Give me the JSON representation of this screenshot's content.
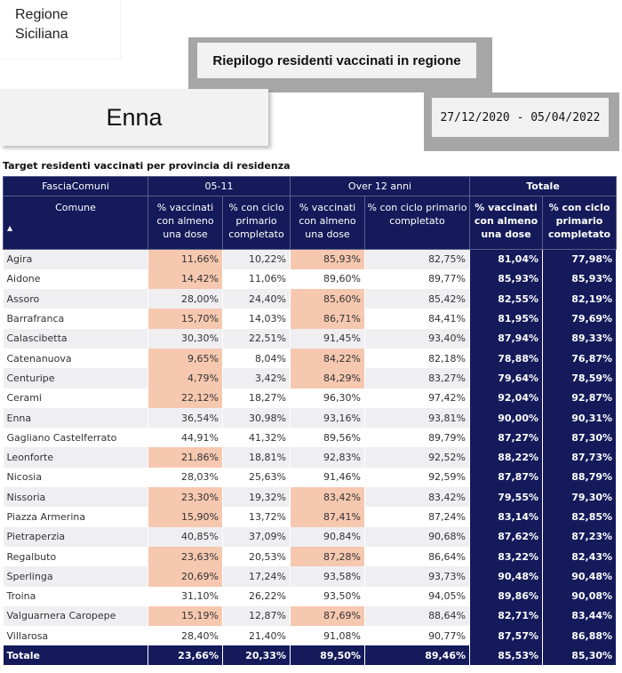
{
  "region": {
    "line1": "Regione",
    "line2": "Siciliana"
  },
  "report_title": "Riepilogo residenti vaccinati in regione",
  "province": "Enna",
  "date_range": "27/12/2020 - 05/04/2022",
  "table_title": "Target residenti vaccinati per provincia di residenza",
  "header": {
    "fascia": "FasciaComuni",
    "group_0511": "05-11",
    "group_over12": "Over 12 anni",
    "group_totale": "Totale",
    "comune": "Comune",
    "col_dose": "% vaccinati con almeno una dose",
    "col_ciclo": "% con ciclo primario completato",
    "sort_glyph": "▲"
  },
  "colors": {
    "header_bg": "#141a5a",
    "highlight": "#f6c8b0"
  },
  "rows": [
    {
      "comune": "Agira",
      "d0511": "11,66%",
      "c0511": "10,22%",
      "d12": "85,93%",
      "c12": "82,75%",
      "dtot": "81,04%",
      "ctot": "77,98%",
      "h1": true,
      "h2": true
    },
    {
      "comune": "Aidone",
      "d0511": "14,42%",
      "c0511": "11,06%",
      "d12": "89,60%",
      "c12": "89,77%",
      "dtot": "85,93%",
      "ctot": "85,93%",
      "h1": true,
      "h2": false
    },
    {
      "comune": "Assoro",
      "d0511": "28,00%",
      "c0511": "24,40%",
      "d12": "85,60%",
      "c12": "85,42%",
      "dtot": "82,55%",
      "ctot": "82,19%",
      "h1": false,
      "h2": true
    },
    {
      "comune": "Barrafranca",
      "d0511": "15,70%",
      "c0511": "14,03%",
      "d12": "86,71%",
      "c12": "84,41%",
      "dtot": "81,95%",
      "ctot": "79,69%",
      "h1": true,
      "h2": true
    },
    {
      "comune": "Calascibetta",
      "d0511": "30,30%",
      "c0511": "22,51%",
      "d12": "91,45%",
      "c12": "93,40%",
      "dtot": "87,94%",
      "ctot": "89,33%",
      "h1": false,
      "h2": false
    },
    {
      "comune": "Catenanuova",
      "d0511": "9,65%",
      "c0511": "8,04%",
      "d12": "84,22%",
      "c12": "82,18%",
      "dtot": "78,88%",
      "ctot": "76,87%",
      "h1": true,
      "h2": true
    },
    {
      "comune": "Centuripe",
      "d0511": "4,79%",
      "c0511": "3,42%",
      "d12": "84,29%",
      "c12": "83,27%",
      "dtot": "79,64%",
      "ctot": "78,59%",
      "h1": true,
      "h2": true
    },
    {
      "comune": "Cerami",
      "d0511": "22,12%",
      "c0511": "18,27%",
      "d12": "96,30%",
      "c12": "97,42%",
      "dtot": "92,04%",
      "ctot": "92,87%",
      "h1": true,
      "h2": false
    },
    {
      "comune": "Enna",
      "d0511": "36,54%",
      "c0511": "30,98%",
      "d12": "93,16%",
      "c12": "93,81%",
      "dtot": "90,00%",
      "ctot": "90,31%",
      "h1": false,
      "h2": false
    },
    {
      "comune": "Gagliano Castelferrato",
      "d0511": "44,91%",
      "c0511": "41,32%",
      "d12": "89,56%",
      "c12": "89,79%",
      "dtot": "87,27%",
      "ctot": "87,30%",
      "h1": false,
      "h2": false
    },
    {
      "comune": "Leonforte",
      "d0511": "21,86%",
      "c0511": "18,81%",
      "d12": "92,83%",
      "c12": "92,52%",
      "dtot": "88,22%",
      "ctot": "87,73%",
      "h1": true,
      "h2": false
    },
    {
      "comune": "Nicosia",
      "d0511": "28,03%",
      "c0511": "25,63%",
      "d12": "91,46%",
      "c12": "92,59%",
      "dtot": "87,87%",
      "ctot": "88,79%",
      "h1": false,
      "h2": false
    },
    {
      "comune": "Nissoria",
      "d0511": "23,30%",
      "c0511": "19,32%",
      "d12": "83,42%",
      "c12": "83,42%",
      "dtot": "79,55%",
      "ctot": "79,30%",
      "h1": true,
      "h2": true
    },
    {
      "comune": "Piazza Armerina",
      "d0511": "15,90%",
      "c0511": "13,72%",
      "d12": "87,41%",
      "c12": "87,24%",
      "dtot": "83,14%",
      "ctot": "82,85%",
      "h1": true,
      "h2": true
    },
    {
      "comune": "Pietraperzia",
      "d0511": "40,85%",
      "c0511": "37,09%",
      "d12": "90,84%",
      "c12": "90,68%",
      "dtot": "87,62%",
      "ctot": "87,23%",
      "h1": false,
      "h2": false
    },
    {
      "comune": "Regalbuto",
      "d0511": "23,63%",
      "c0511": "20,53%",
      "d12": "87,28%",
      "c12": "86,64%",
      "dtot": "83,22%",
      "ctot": "82,43%",
      "h1": true,
      "h2": true
    },
    {
      "comune": "Sperlinga",
      "d0511": "20,69%",
      "c0511": "17,24%",
      "d12": "93,58%",
      "c12": "93,73%",
      "dtot": "90,48%",
      "ctot": "90,48%",
      "h1": true,
      "h2": false
    },
    {
      "comune": "Troina",
      "d0511": "31,10%",
      "c0511": "26,22%",
      "d12": "93,50%",
      "c12": "94,05%",
      "dtot": "89,86%",
      "ctot": "90,08%",
      "h1": false,
      "h2": false
    },
    {
      "comune": "Valguarnera Caropepe",
      "d0511": "15,19%",
      "c0511": "12,87%",
      "d12": "87,69%",
      "c12": "88,64%",
      "dtot": "82,71%",
      "ctot": "83,44%",
      "h1": true,
      "h2": true
    },
    {
      "comune": "Villarosa",
      "d0511": "28,40%",
      "c0511": "21,40%",
      "d12": "91,08%",
      "c12": "90,77%",
      "dtot": "87,57%",
      "ctot": "86,88%",
      "h1": false,
      "h2": false
    }
  ],
  "total": {
    "label": "Totale",
    "d0511": "23,66%",
    "c0511": "20,33%",
    "d12": "89,50%",
    "c12": "89,46%",
    "dtot": "85,53%",
    "ctot": "85,30%"
  }
}
